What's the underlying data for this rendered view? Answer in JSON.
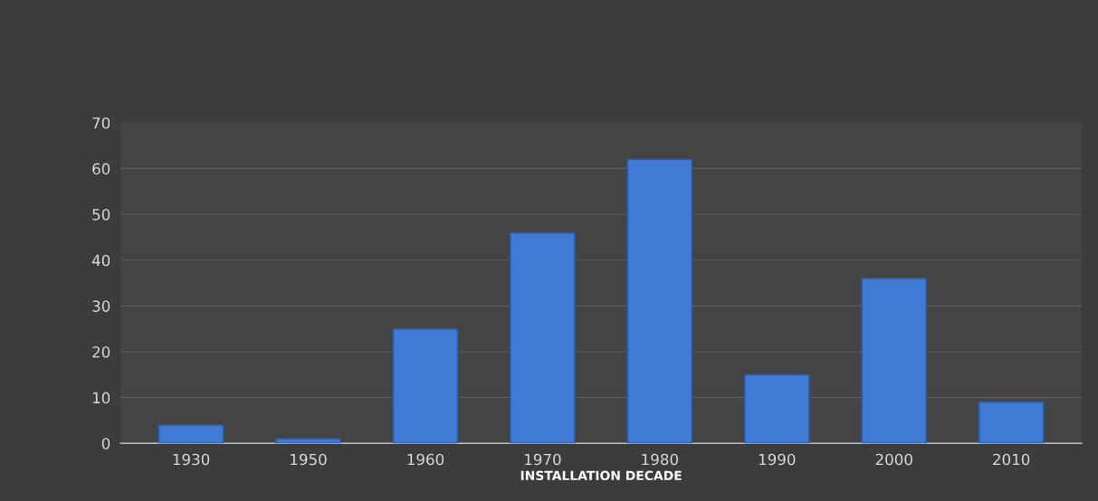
{
  "chart_data": {
    "type": "bar",
    "xlabel": "INSTALLATION DECADE",
    "categories": [
      "1930",
      "1950",
      "1960",
      "1970",
      "1980",
      "1990",
      "2000",
      "2010"
    ],
    "values": [
      4,
      1,
      25,
      46,
      62,
      15,
      36,
      9
    ],
    "color": "#3f7bd4",
    "ylim": [
      0,
      70
    ],
    "yticks": [
      0,
      10,
      20,
      30,
      40,
      50,
      60,
      70
    ],
    "grid": "y",
    "legend": false
  }
}
